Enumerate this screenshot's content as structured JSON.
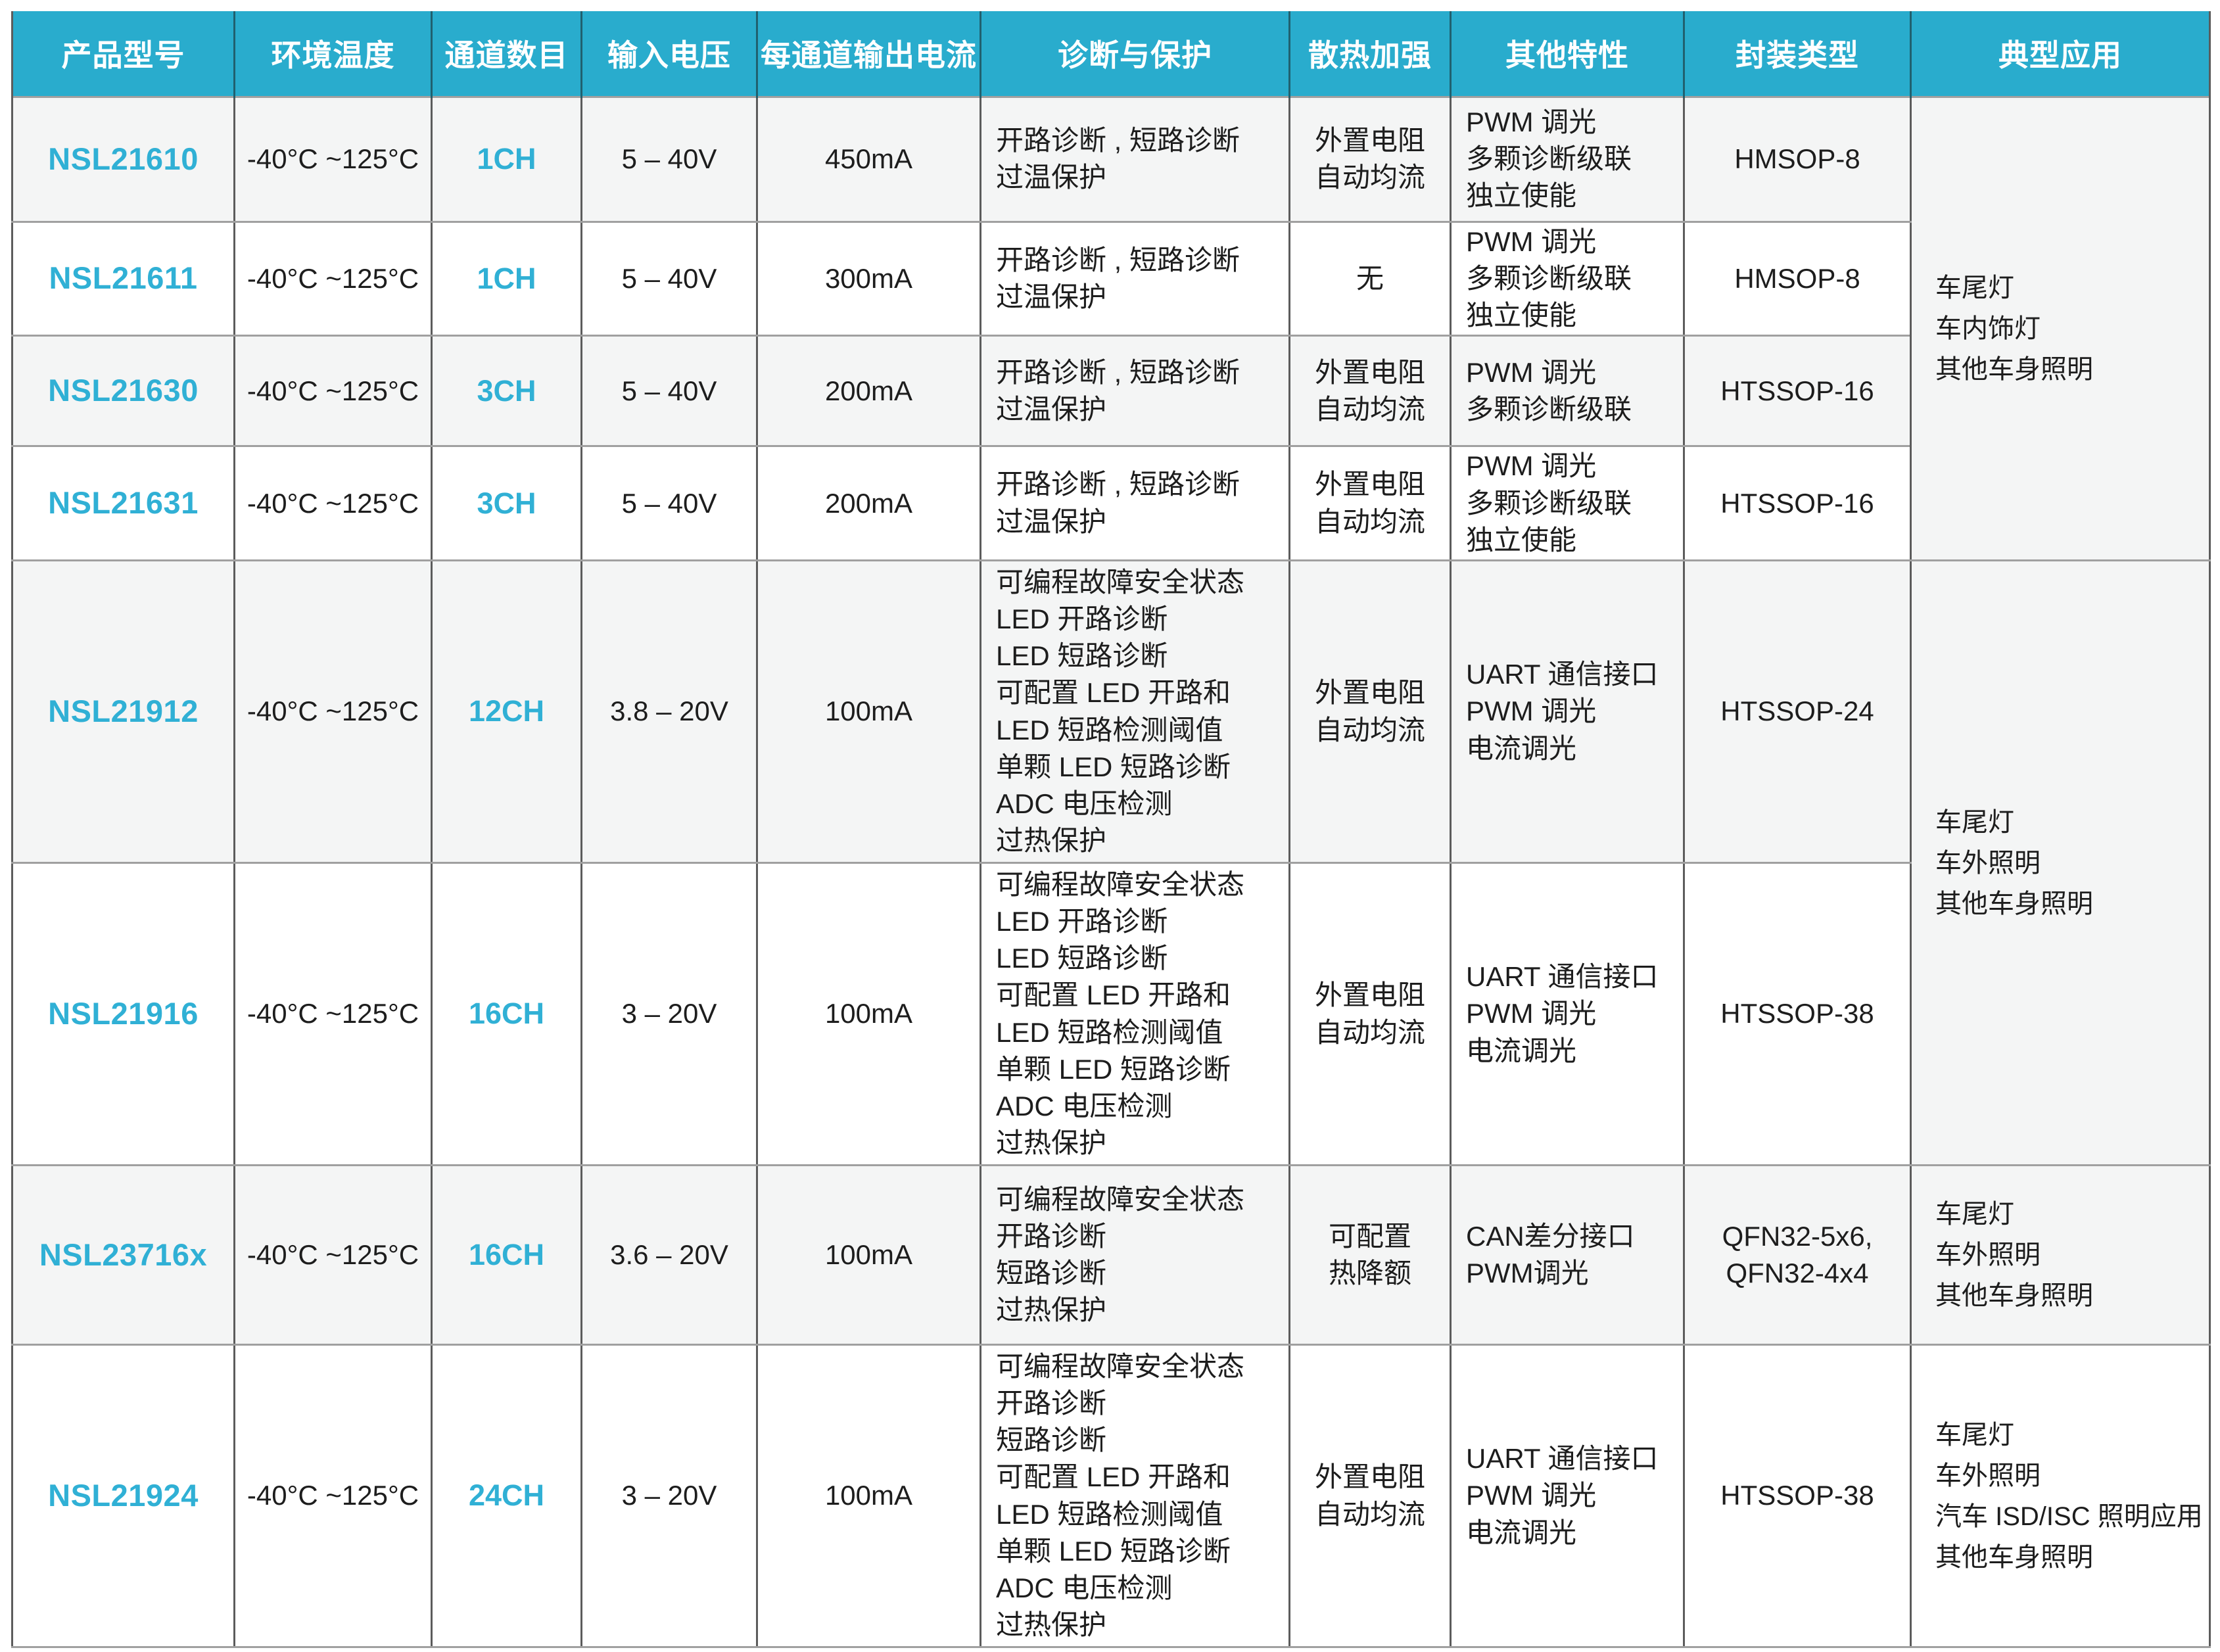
{
  "colors": {
    "header_bg": "#29accd",
    "accent_text": "#30b0d5",
    "alt_row_bg": "#f4f5f5",
    "horizontal_border": "#a0a0a0",
    "vertical_border": "#5c5c5c"
  },
  "table": {
    "headers": [
      "产品型号",
      "环境温度",
      "通道数目",
      "输入电压",
      "每通道输出电流",
      "诊断与保护",
      "散热加强",
      "其他特性",
      "封装类型",
      "典型应用"
    ],
    "rows": [
      {
        "model": "NSL21610",
        "temp": "-40°C ~125°C",
        "channels": "1CH",
        "voltage": "5 – 40V",
        "current": "450mA",
        "diag": [
          "开路诊断 , 短路诊断",
          "过温保护"
        ],
        "thermal": [
          "外置电阻",
          "自动均流"
        ],
        "features": [
          "PWM 调光",
          "多颗诊断级联",
          "独立使能"
        ],
        "pkg": [
          "HMSOP-8"
        ]
      },
      {
        "model": "NSL21611",
        "temp": "-40°C ~125°C",
        "channels": "1CH",
        "voltage": "5 – 40V",
        "current": "300mA",
        "diag": [
          "开路诊断 , 短路诊断",
          "过温保护"
        ],
        "thermal": [
          "无"
        ],
        "features": [
          "PWM 调光",
          "多颗诊断级联",
          "独立使能"
        ],
        "pkg": [
          "HMSOP-8"
        ]
      },
      {
        "model": "NSL21630",
        "temp": "-40°C ~125°C",
        "channels": "3CH",
        "voltage": "5 – 40V",
        "current": "200mA",
        "diag": [
          "开路诊断 , 短路诊断",
          "过温保护"
        ],
        "thermal": [
          "外置电阻",
          "自动均流"
        ],
        "features": [
          "PWM 调光",
          "多颗诊断级联"
        ],
        "pkg": [
          "HTSSOP-16"
        ]
      },
      {
        "model": "NSL21631",
        "temp": "-40°C ~125°C",
        "channels": "3CH",
        "voltage": "5 – 40V",
        "current": "200mA",
        "diag": [
          "开路诊断 , 短路诊断",
          "过温保护"
        ],
        "thermal": [
          "外置电阻",
          "自动均流"
        ],
        "features": [
          "PWM 调光",
          "多颗诊断级联",
          "独立使能"
        ],
        "pkg": [
          "HTSSOP-16"
        ]
      },
      {
        "model": "NSL21912",
        "temp": "-40°C ~125°C",
        "channels": "12CH",
        "voltage": "3.8 – 20V",
        "current": "100mA",
        "diag": [
          "可编程故障安全状态",
          "LED 开路诊断",
          "LED 短路诊断",
          "可配置 LED 开路和",
          "LED 短路检测阈值",
          "单颗 LED 短路诊断",
          "ADC 电压检测",
          "过热保护"
        ],
        "thermal": [
          "外置电阻",
          "自动均流"
        ],
        "features": [
          "UART 通信接口",
          "PWM 调光",
          "电流调光"
        ],
        "pkg": [
          "HTSSOP-24"
        ]
      },
      {
        "model": "NSL21916",
        "temp": "-40°C ~125°C",
        "channels": "16CH",
        "voltage": "3 – 20V",
        "current": "100mA",
        "diag": [
          "可编程故障安全状态",
          "LED 开路诊断",
          "LED 短路诊断",
          "可配置 LED 开路和",
          "LED 短路检测阈值",
          "单颗 LED 短路诊断",
          "ADC 电压检测",
          "过热保护"
        ],
        "thermal": [
          "外置电阻",
          "自动均流"
        ],
        "features": [
          "UART 通信接口",
          "PWM 调光",
          "电流调光"
        ],
        "pkg": [
          "HTSSOP-38"
        ]
      },
      {
        "model": "NSL23716x",
        "temp": "-40°C ~125°C",
        "channels": "16CH",
        "voltage": "3.6 – 20V",
        "current": "100mA",
        "diag": [
          "可编程故障安全状态",
          "开路诊断",
          "短路诊断",
          "过热保护"
        ],
        "thermal": [
          "可配置",
          "热降额"
        ],
        "features": [
          "CAN差分接口",
          "PWM调光"
        ],
        "pkg": [
          "QFN32-5x6,",
          "QFN32-4x4"
        ]
      },
      {
        "model": "NSL21924",
        "temp": "-40°C ~125°C",
        "channels": "24CH",
        "voltage": "3 – 20V",
        "current": "100mA",
        "diag": [
          "可编程故障安全状态",
          "开路诊断",
          "短路诊断",
          "可配置 LED 开路和",
          "LED 短路检测阈值",
          "单颗 LED 短路诊断",
          "ADC 电压检测",
          "过热保护"
        ],
        "thermal": [
          "外置电阻",
          "自动均流"
        ],
        "features": [
          "UART 通信接口",
          "PWM 调光",
          "电流调光"
        ],
        "pkg": [
          "HTSSOP-38"
        ]
      }
    ],
    "app_groups": [
      {
        "rowspan": 4,
        "lines": [
          "车尾灯",
          "车内饰灯",
          "其他车身照明"
        ]
      },
      {
        "rowspan": 2,
        "lines": [
          "车尾灯",
          "车外照明",
          "其他车身照明"
        ]
      },
      {
        "rowspan": 1,
        "lines": [
          "车尾灯",
          "车外照明",
          "其他车身照明"
        ]
      },
      {
        "rowspan": 1,
        "lines": [
          "车尾灯",
          "车外照明",
          "汽车 ISD/ISC 照明应用",
          "其他车身照明"
        ]
      }
    ]
  }
}
